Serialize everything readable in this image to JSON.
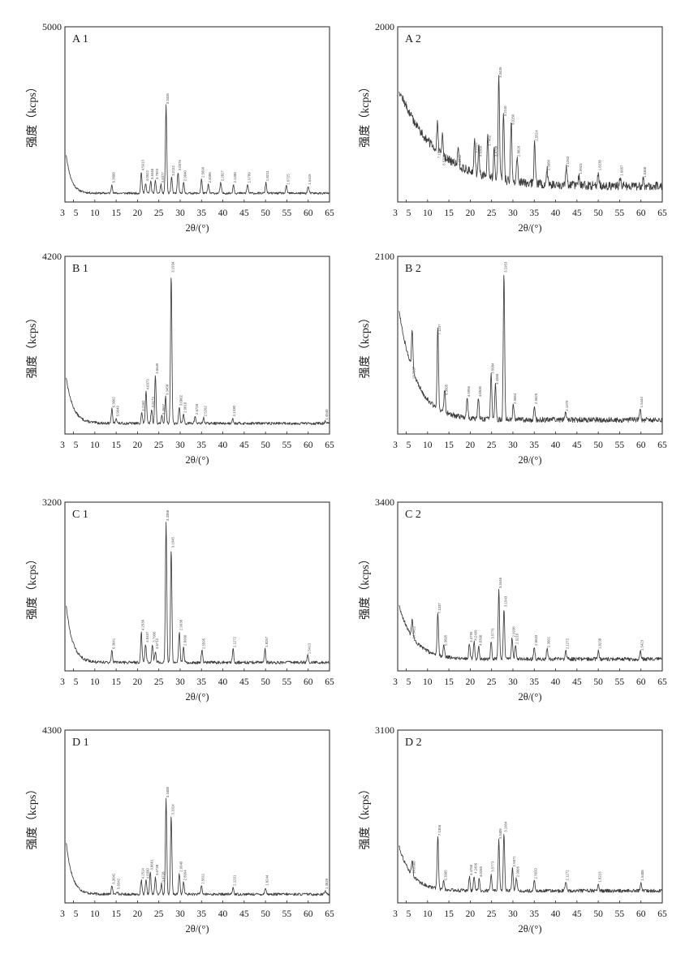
{
  "figure": {
    "x_tick_labels": [
      "3",
      "5",
      "10",
      "15",
      "20",
      "25",
      "30",
      "35",
      "40",
      "45",
      "50",
      "55",
      "60",
      "65"
    ],
    "x_axis_label": "2θ/(°)",
    "y_axis_label": "强度（kcps）"
  },
  "chart_data": [
    {
      "type": "line",
      "id": "A1",
      "panel_label": "A 1",
      "ylim": [
        0,
        5000
      ],
      "y_max_label": "5000",
      "xlim": [
        3,
        65
      ],
      "ylabel": "强度（kcps）",
      "xlabel": "2θ/(°)",
      "baseline": 0.05,
      "start": 0.22,
      "decay": 1.2,
      "noise": 0.012,
      "peaks": [
        {
          "x": 14.0,
          "y": 0.1,
          "label": "6.3600"
        },
        {
          "x": 20.9,
          "y": 0.17,
          "label": "4.5913"
        },
        {
          "x": 21.9,
          "y": 0.11,
          "label": "4.0522"
        },
        {
          "x": 23.1,
          "y": 0.12,
          "label": "3.8448"
        },
        {
          "x": 24.2,
          "y": 0.12,
          "label": "3.7593"
        },
        {
          "x": 25.5,
          "y": 0.1,
          "label": "3.4977"
        },
        {
          "x": 26.7,
          "y": 0.55,
          "label": "3.3435"
        },
        {
          "x": 28.0,
          "y": 0.14,
          "label": "3.2112"
        },
        {
          "x": 29.5,
          "y": 0.17,
          "label": "3.0376"
        },
        {
          "x": 30.8,
          "y": 0.11,
          "label": "2.9040"
        },
        {
          "x": 35.0,
          "y": 0.13,
          "label": "2.5696"
        },
        {
          "x": 36.6,
          "y": 0.1,
          "label": "2.4586"
        },
        {
          "x": 39.5,
          "y": 0.11,
          "label": "2.2827"
        },
        {
          "x": 42.5,
          "y": 0.1,
          "label": "2.1280"
        },
        {
          "x": 45.8,
          "y": 0.1,
          "label": "1.9789"
        },
        {
          "x": 50.1,
          "y": 0.11,
          "label": "1.8211"
        },
        {
          "x": 54.9,
          "y": 0.09,
          "label": "1.6725"
        },
        {
          "x": 60.0,
          "y": 0.09,
          "label": "1.5415"
        }
      ]
    },
    {
      "type": "line",
      "id": "A2",
      "panel_label": "A 2",
      "ylim": [
        0,
        2000
      ],
      "y_max_label": "2000",
      "xlim": [
        3,
        65
      ],
      "ylabel": "强度（kcps）",
      "xlabel": "2θ/(°)",
      "baseline": 0.09,
      "start": 0.55,
      "decay": 9.0,
      "noise": 0.05,
      "peaks": [
        {
          "x": 12.3,
          "y": 0.24,
          "label": "7.1776"
        },
        {
          "x": 13.5,
          "y": 0.2,
          "label": "6.5700"
        },
        {
          "x": 17.2,
          "y": 0.2,
          "label": "5.0942"
        },
        {
          "x": 21.0,
          "y": 0.27,
          "label": "4.2322"
        },
        {
          "x": 22.0,
          "y": 0.25,
          "label": "4.0389"
        },
        {
          "x": 24.1,
          "y": 0.31,
          "label": "3.7462"
        },
        {
          "x": 25.6,
          "y": 0.25,
          "label": "3.4788"
        },
        {
          "x": 26.7,
          "y": 0.7,
          "label": "3.3435"
        },
        {
          "x": 27.8,
          "y": 0.48,
          "label": "3.2110"
        },
        {
          "x": 29.6,
          "y": 0.43,
          "label": "3.0150"
        },
        {
          "x": 31.0,
          "y": 0.25,
          "label": "2.8826"
        },
        {
          "x": 35.1,
          "y": 0.34,
          "label": "2.5524"
        },
        {
          "x": 38.0,
          "y": 0.17,
          "label": "2.3668"
        },
        {
          "x": 42.5,
          "y": 0.19,
          "label": "2.1263"
        },
        {
          "x": 45.5,
          "y": 0.15,
          "label": "1.9923"
        },
        {
          "x": 50.0,
          "y": 0.17,
          "label": "1.8230"
        },
        {
          "x": 55.1,
          "y": 0.14,
          "label": "1.6657"
        },
        {
          "x": 60.5,
          "y": 0.13,
          "label": "1.5300"
        }
      ]
    },
    {
      "type": "line",
      "id": "B1",
      "panel_label": "B 1",
      "ylim": [
        0,
        4200
      ],
      "y_max_label": "4200",
      "xlim": [
        3,
        65
      ],
      "ylabel": "强度（kcps）",
      "xlabel": "2θ/(°)",
      "baseline": 0.06,
      "start": 0.26,
      "decay": 1.6,
      "noise": 0.015,
      "peaks": [
        {
          "x": 14.0,
          "y": 0.14,
          "label": "6.3602"
        },
        {
          "x": 15.0,
          "y": 0.09,
          "label": "5.9049"
        },
        {
          "x": 21.0,
          "y": 0.12,
          "label": "4.2362"
        },
        {
          "x": 22.0,
          "y": 0.24,
          "label": "4.0373"
        },
        {
          "x": 23.3,
          "y": 0.14,
          "label": "3.8173"
        },
        {
          "x": 24.2,
          "y": 0.33,
          "label": "3.6649"
        },
        {
          "x": 25.7,
          "y": 0.1,
          "label": "3.4667"
        },
        {
          "x": 26.6,
          "y": 0.21,
          "label": "3.3458"
        },
        {
          "x": 27.9,
          "y": 0.9,
          "label": "3.1934"
        },
        {
          "x": 29.8,
          "y": 0.15,
          "label": "3.0002"
        },
        {
          "x": 30.8,
          "y": 0.11,
          "label": "2.9010"
        },
        {
          "x": 33.5,
          "y": 0.1,
          "label": "2.6728"
        },
        {
          "x": 35.5,
          "y": 0.09,
          "label": "2.5262"
        },
        {
          "x": 42.3,
          "y": 0.09,
          "label": "2.1330"
        },
        {
          "x": 64.0,
          "y": 0.07,
          "label": "1.4540"
        }
      ]
    },
    {
      "type": "line",
      "id": "B2",
      "panel_label": "B 2",
      "ylim": [
        0,
        2100
      ],
      "y_max_label": "2100",
      "xlim": [
        3,
        65
      ],
      "ylabel": "强度（kcps）",
      "xlabel": "2θ/(°)",
      "baseline": 0.08,
      "start": 0.62,
      "decay": 4.0,
      "noise": 0.03,
      "peaks": [
        {
          "x": 6.4,
          "y": 0.3,
          "label": "13.7537"
        },
        {
          "x": 12.4,
          "y": 0.55,
          "label": "7.1237"
        },
        {
          "x": 14.0,
          "y": 0.21,
          "label": "6.3505"
        },
        {
          "x": 19.3,
          "y": 0.2,
          "label": "4.5956"
        },
        {
          "x": 21.9,
          "y": 0.2,
          "label": "4.0535"
        },
        {
          "x": 24.9,
          "y": 0.33,
          "label": "3.5684"
        },
        {
          "x": 25.9,
          "y": 0.27,
          "label": "3.4366"
        },
        {
          "x": 27.9,
          "y": 0.9,
          "label": "3.1953"
        },
        {
          "x": 30.1,
          "y": 0.16,
          "label": "2.9664"
        },
        {
          "x": 35.0,
          "y": 0.16,
          "label": "2.5625"
        },
        {
          "x": 42.3,
          "y": 0.12,
          "label": "2.1370"
        },
        {
          "x": 59.8,
          "y": 0.14,
          "label": "1.5444"
        }
      ]
    },
    {
      "type": "line",
      "id": "C1",
      "panel_label": "C 1",
      "ylim": [
        0,
        3200
      ],
      "y_max_label": "3200",
      "xlim": [
        3,
        65
      ],
      "ylabel": "强度（kcps）",
      "xlabel": "2θ/(°)",
      "baseline": 0.05,
      "start": 0.34,
      "decay": 1.5,
      "noise": 0.018,
      "peaks": [
        {
          "x": 14.0,
          "y": 0.12,
          "label": "6.3641"
        },
        {
          "x": 20.9,
          "y": 0.23,
          "label": "4.2538"
        },
        {
          "x": 21.9,
          "y": 0.16,
          "label": "4.0437"
        },
        {
          "x": 23.5,
          "y": 0.16,
          "label": "3.7906"
        },
        {
          "x": 24.2,
          "y": 0.12,
          "label": "3.6712"
        },
        {
          "x": 26.7,
          "y": 0.88,
          "label": "3.3358"
        },
        {
          "x": 27.9,
          "y": 0.72,
          "label": "3.1945"
        },
        {
          "x": 29.8,
          "y": 0.23,
          "label": "2.9938"
        },
        {
          "x": 30.8,
          "y": 0.14,
          "label": "2.8960"
        },
        {
          "x": 35.1,
          "y": 0.12,
          "label": "2.5595"
        },
        {
          "x": 42.4,
          "y": 0.13,
          "label": "2.1272"
        },
        {
          "x": 49.9,
          "y": 0.13,
          "label": "1.8257"
        },
        {
          "x": 59.9,
          "y": 0.09,
          "label": "1.5413"
        }
      ]
    },
    {
      "type": "line",
      "id": "C2",
      "panel_label": "C 2",
      "ylim": [
        0,
        3400
      ],
      "y_max_label": "3400",
      "xlim": [
        3,
        65
      ],
      "ylabel": "强度（kcps）",
      "xlabel": "2θ/(°)",
      "baseline": 0.07,
      "start": 0.32,
      "decay": 3.5,
      "noise": 0.022,
      "peaks": [
        {
          "x": 6.4,
          "y": 0.18,
          "label": "14.3412"
        },
        {
          "x": 12.4,
          "y": 0.33,
          "label": "7.1337"
        },
        {
          "x": 13.8,
          "y": 0.14,
          "label": "6.3695"
        },
        {
          "x": 19.8,
          "y": 0.16,
          "label": "4.4795"
        },
        {
          "x": 20.9,
          "y": 0.17,
          "label": "4.2496"
        },
        {
          "x": 22.0,
          "y": 0.14,
          "label": "4.0390"
        },
        {
          "x": 24.9,
          "y": 0.18,
          "label": "3.5779"
        },
        {
          "x": 26.7,
          "y": 0.48,
          "label": "3.3446"
        },
        {
          "x": 27.9,
          "y": 0.37,
          "label": "3.1943"
        },
        {
          "x": 29.8,
          "y": 0.19,
          "label": "2.9938"
        },
        {
          "x": 30.6,
          "y": 0.15,
          "label": "2.9210"
        },
        {
          "x": 35.0,
          "y": 0.14,
          "label": "2.5633"
        },
        {
          "x": 38.0,
          "y": 0.13,
          "label": "2.3661"
        },
        {
          "x": 42.4,
          "y": 0.12,
          "label": "2.1272"
        },
        {
          "x": 50.0,
          "y": 0.12,
          "label": "1.8238"
        },
        {
          "x": 59.9,
          "y": 0.11,
          "label": "1.5423"
        }
      ]
    },
    {
      "type": "line",
      "id": "D1",
      "panel_label": "D 1",
      "ylim": [
        0,
        4300
      ],
      "y_max_label": "4300",
      "xlim": [
        3,
        65
      ],
      "ylabel": "强度（kcps）",
      "xlabel": "2θ/(°)",
      "baseline": 0.05,
      "start": 0.3,
      "decay": 1.4,
      "noise": 0.015,
      "peaks": [
        {
          "x": 14.0,
          "y": 0.1,
          "label": "6.3642"
        },
        {
          "x": 15.2,
          "y": 0.07,
          "label": "5.8342"
        },
        {
          "x": 20.9,
          "y": 0.13,
          "label": "4.2514"
        },
        {
          "x": 22.0,
          "y": 0.13,
          "label": "4.0390"
        },
        {
          "x": 23.0,
          "y": 0.18,
          "label": "3.8661"
        },
        {
          "x": 24.2,
          "y": 0.15,
          "label": "3.6738"
        },
        {
          "x": 25.6,
          "y": 0.11,
          "label": "3.4728"
        },
        {
          "x": 26.7,
          "y": 0.6,
          "label": "3.3408"
        },
        {
          "x": 27.9,
          "y": 0.5,
          "label": "3.1924"
        },
        {
          "x": 29.8,
          "y": 0.17,
          "label": "2.9949"
        },
        {
          "x": 30.8,
          "y": 0.12,
          "label": "2.8994"
        },
        {
          "x": 35.0,
          "y": 0.1,
          "label": "2.5611"
        },
        {
          "x": 42.4,
          "y": 0.09,
          "label": "2.1291"
        },
        {
          "x": 50.0,
          "y": 0.09,
          "label": "1.8244"
        },
        {
          "x": 64.0,
          "y": 0.07,
          "label": "1.4528"
        }
      ]
    },
    {
      "type": "line",
      "id": "D2",
      "panel_label": "D 2",
      "ylim": [
        0,
        3100
      ],
      "y_max_label": "3100",
      "xlim": [
        3,
        65
      ],
      "ylabel": "强度（kcps）",
      "xlabel": "2θ/(°)",
      "baseline": 0.07,
      "start": 0.26,
      "decay": 3.0,
      "noise": 0.02,
      "peaks": [
        {
          "x": 6.4,
          "y": 0.16,
          "label": "14.0600"
        },
        {
          "x": 12.4,
          "y": 0.38,
          "label": "7.1356"
        },
        {
          "x": 13.8,
          "y": 0.12,
          "label": "6.3905"
        },
        {
          "x": 19.8,
          "y": 0.15,
          "label": "4.4760"
        },
        {
          "x": 20.9,
          "y": 0.16,
          "label": "4.2496"
        },
        {
          "x": 22.1,
          "y": 0.14,
          "label": "4.0285"
        },
        {
          "x": 24.9,
          "y": 0.17,
          "label": "3.5773"
        },
        {
          "x": 26.7,
          "y": 0.36,
          "label": "3.3405"
        },
        {
          "x": 27.9,
          "y": 0.4,
          "label": "3.1964"
        },
        {
          "x": 29.9,
          "y": 0.2,
          "label": "2.9871"
        },
        {
          "x": 30.8,
          "y": 0.14,
          "label": "2.9006"
        },
        {
          "x": 35.0,
          "y": 0.13,
          "label": "2.5633"
        },
        {
          "x": 42.4,
          "y": 0.12,
          "label": "2.1272"
        },
        {
          "x": 50.0,
          "y": 0.11,
          "label": "1.8223"
        },
        {
          "x": 60.0,
          "y": 0.12,
          "label": "1.5408"
        }
      ]
    }
  ]
}
